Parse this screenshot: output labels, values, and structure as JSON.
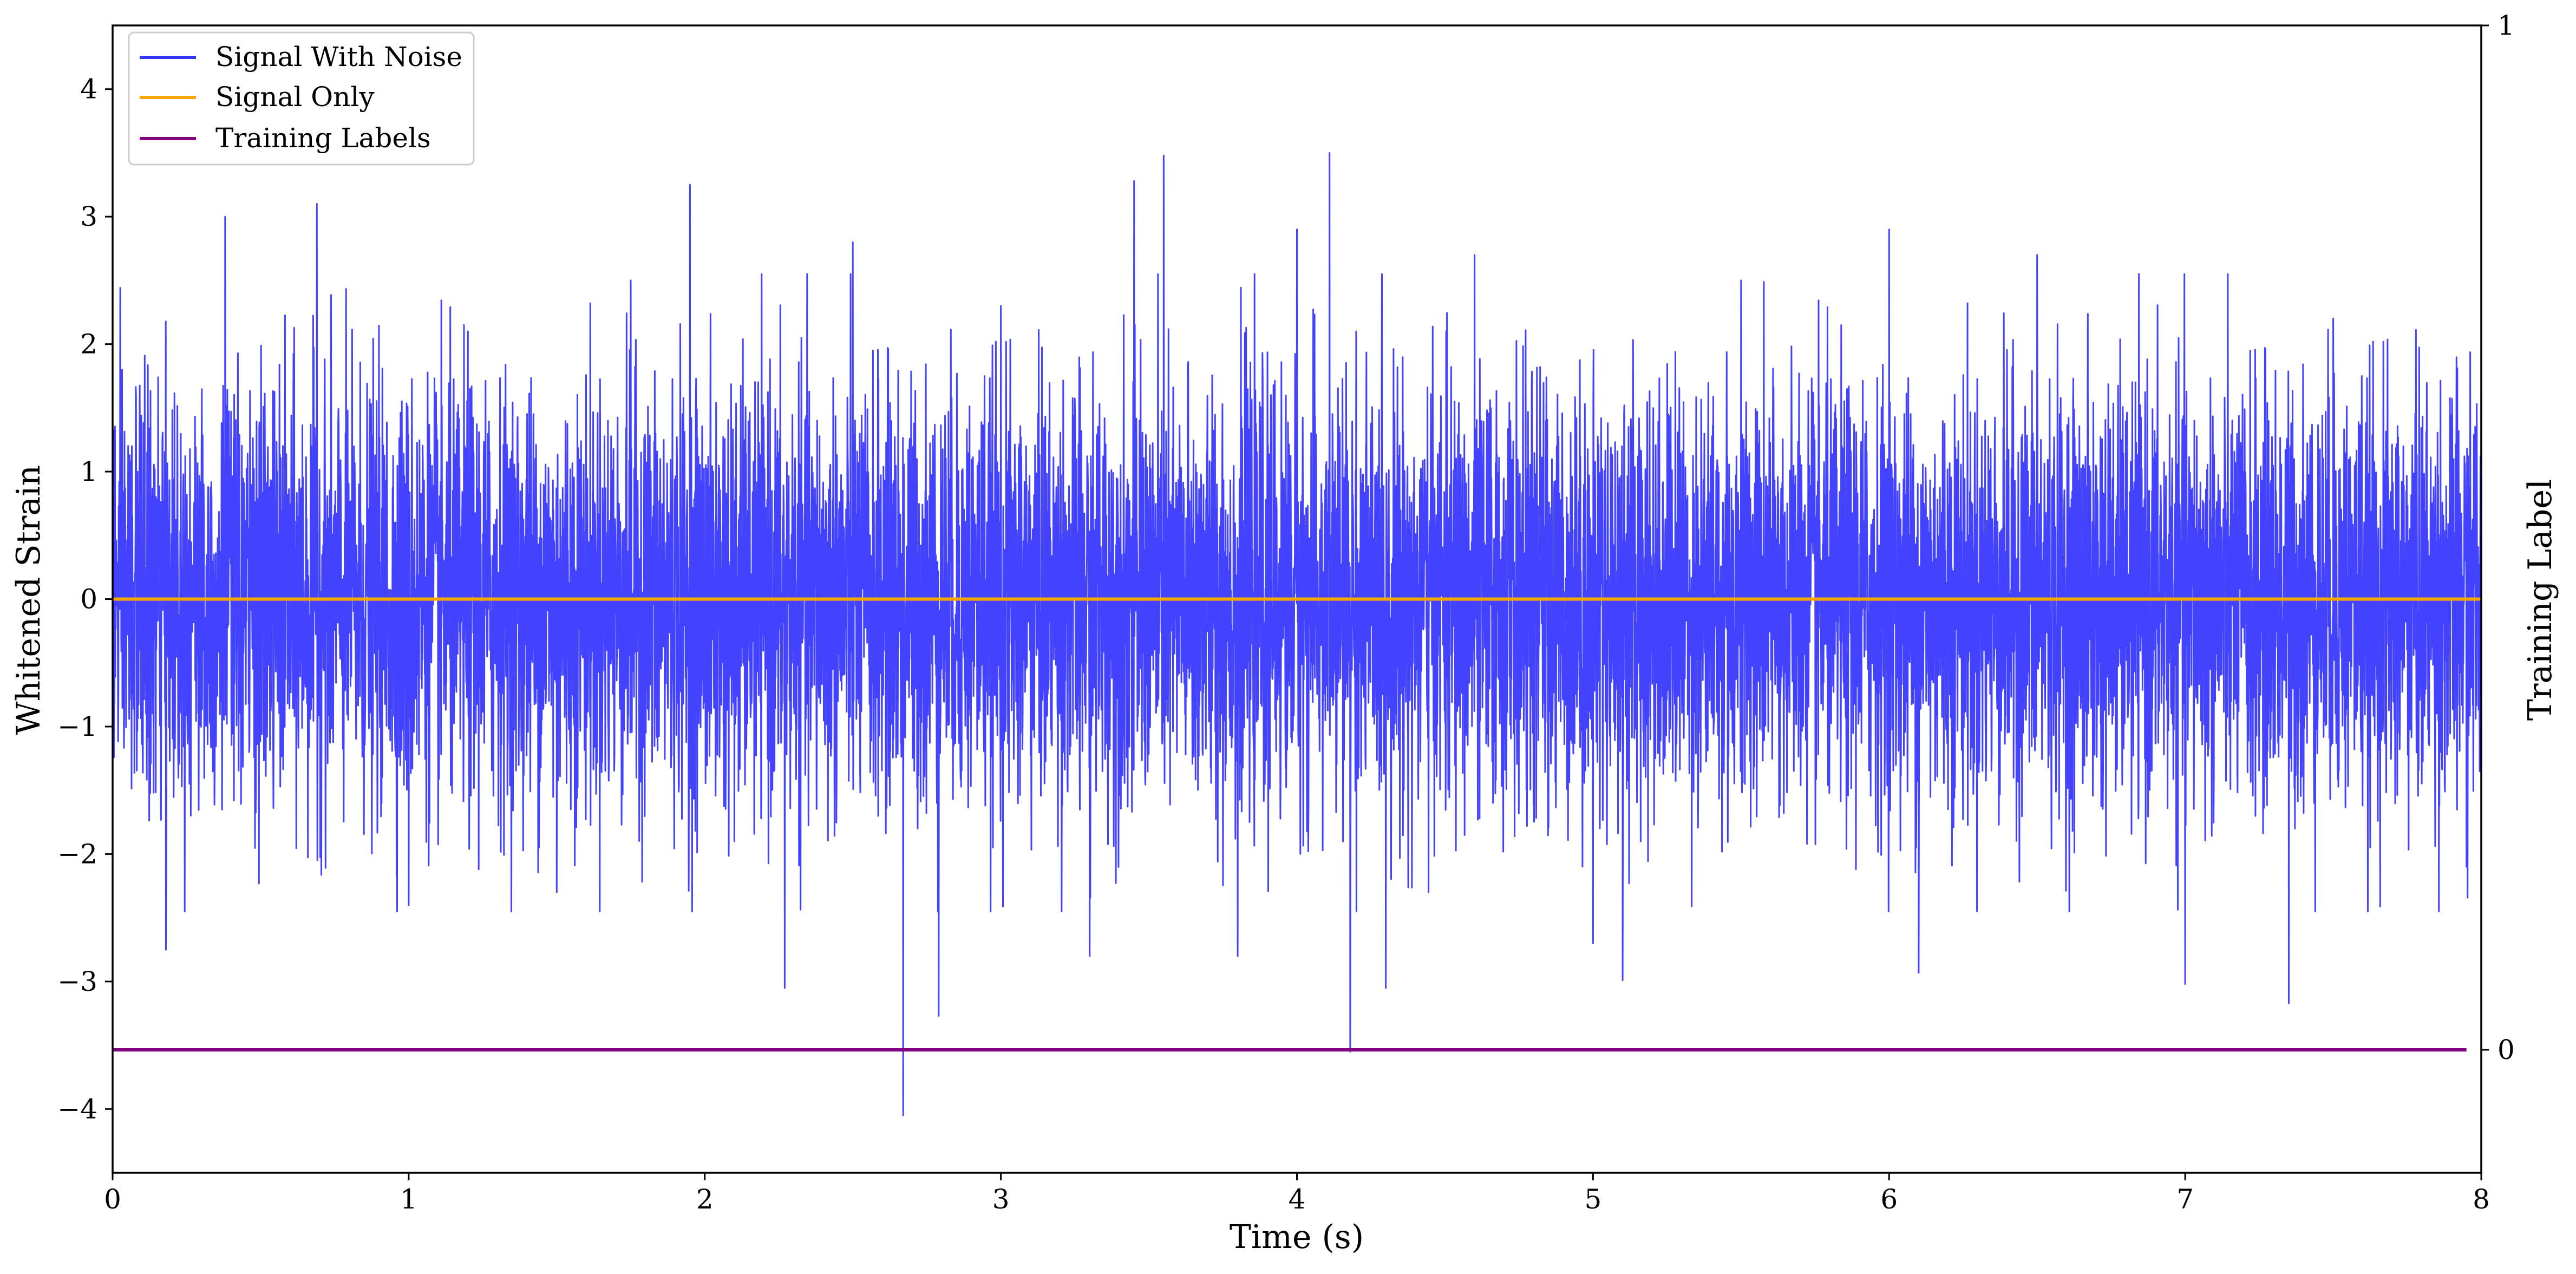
{
  "chart_data": {
    "type": "line",
    "title": "",
    "xlabel": "Time (s)",
    "ylabel": "Whitened Strain",
    "y2label": "Training Label",
    "xlim": [
      0,
      8
    ],
    "ylim": [
      -4.5,
      4.5
    ],
    "y2lim": [
      -0.12,
      1.0
    ],
    "x_ticks": [
      0,
      1,
      2,
      3,
      4,
      5,
      6,
      7,
      8
    ],
    "y_ticks": [
      -4,
      -3,
      -2,
      -1,
      0,
      1,
      2,
      3,
      4
    ],
    "y2_ticks": [
      0,
      1
    ],
    "grid": false,
    "legend_position": "top-left",
    "series": [
      {
        "name": "Signal With Noise",
        "color": "#3333ff",
        "axis": "left",
        "description_values": "dense noise, roughly within [-2.5, 2.5] with spikes to +3.5 and -4.0",
        "x": [
          0,
          0.18,
          0.38,
          0.69,
          0.71,
          1.0,
          1.2,
          1.5,
          1.75,
          1.95,
          2.1,
          2.27,
          2.5,
          2.67,
          2.79,
          3.0,
          3.3,
          3.45,
          3.55,
          3.8,
          4.0,
          4.11,
          4.18,
          4.3,
          4.6,
          5.0,
          5.1,
          5.5,
          6.0,
          6.1,
          6.5,
          7.0,
          7.35,
          7.5,
          7.95,
          8.0
        ],
        "y": [
          1.3,
          -2.75,
          3.0,
          3.1,
          0.05,
          -2.4,
          2.1,
          -2.3,
          2.5,
          3.25,
          -1.9,
          -3.05,
          2.8,
          -4.05,
          -3.27,
          2.3,
          -2.8,
          3.28,
          3.48,
          -2.8,
          2.9,
          3.5,
          -3.55,
          -3.05,
          2.7,
          -2.7,
          -2.99,
          2.5,
          2.9,
          -2.93,
          2.7,
          -3.02,
          -3.17,
          2.2,
          -2.1,
          1.6
        ]
      },
      {
        "name": "Signal Only",
        "color": "#ffa500",
        "axis": "left",
        "x": [
          0,
          8
        ],
        "y": [
          0,
          0
        ]
      },
      {
        "name": "Training Labels",
        "color": "#800080",
        "axis": "right",
        "x": [
          0,
          7.95
        ],
        "y": [
          0,
          0
        ]
      }
    ]
  }
}
